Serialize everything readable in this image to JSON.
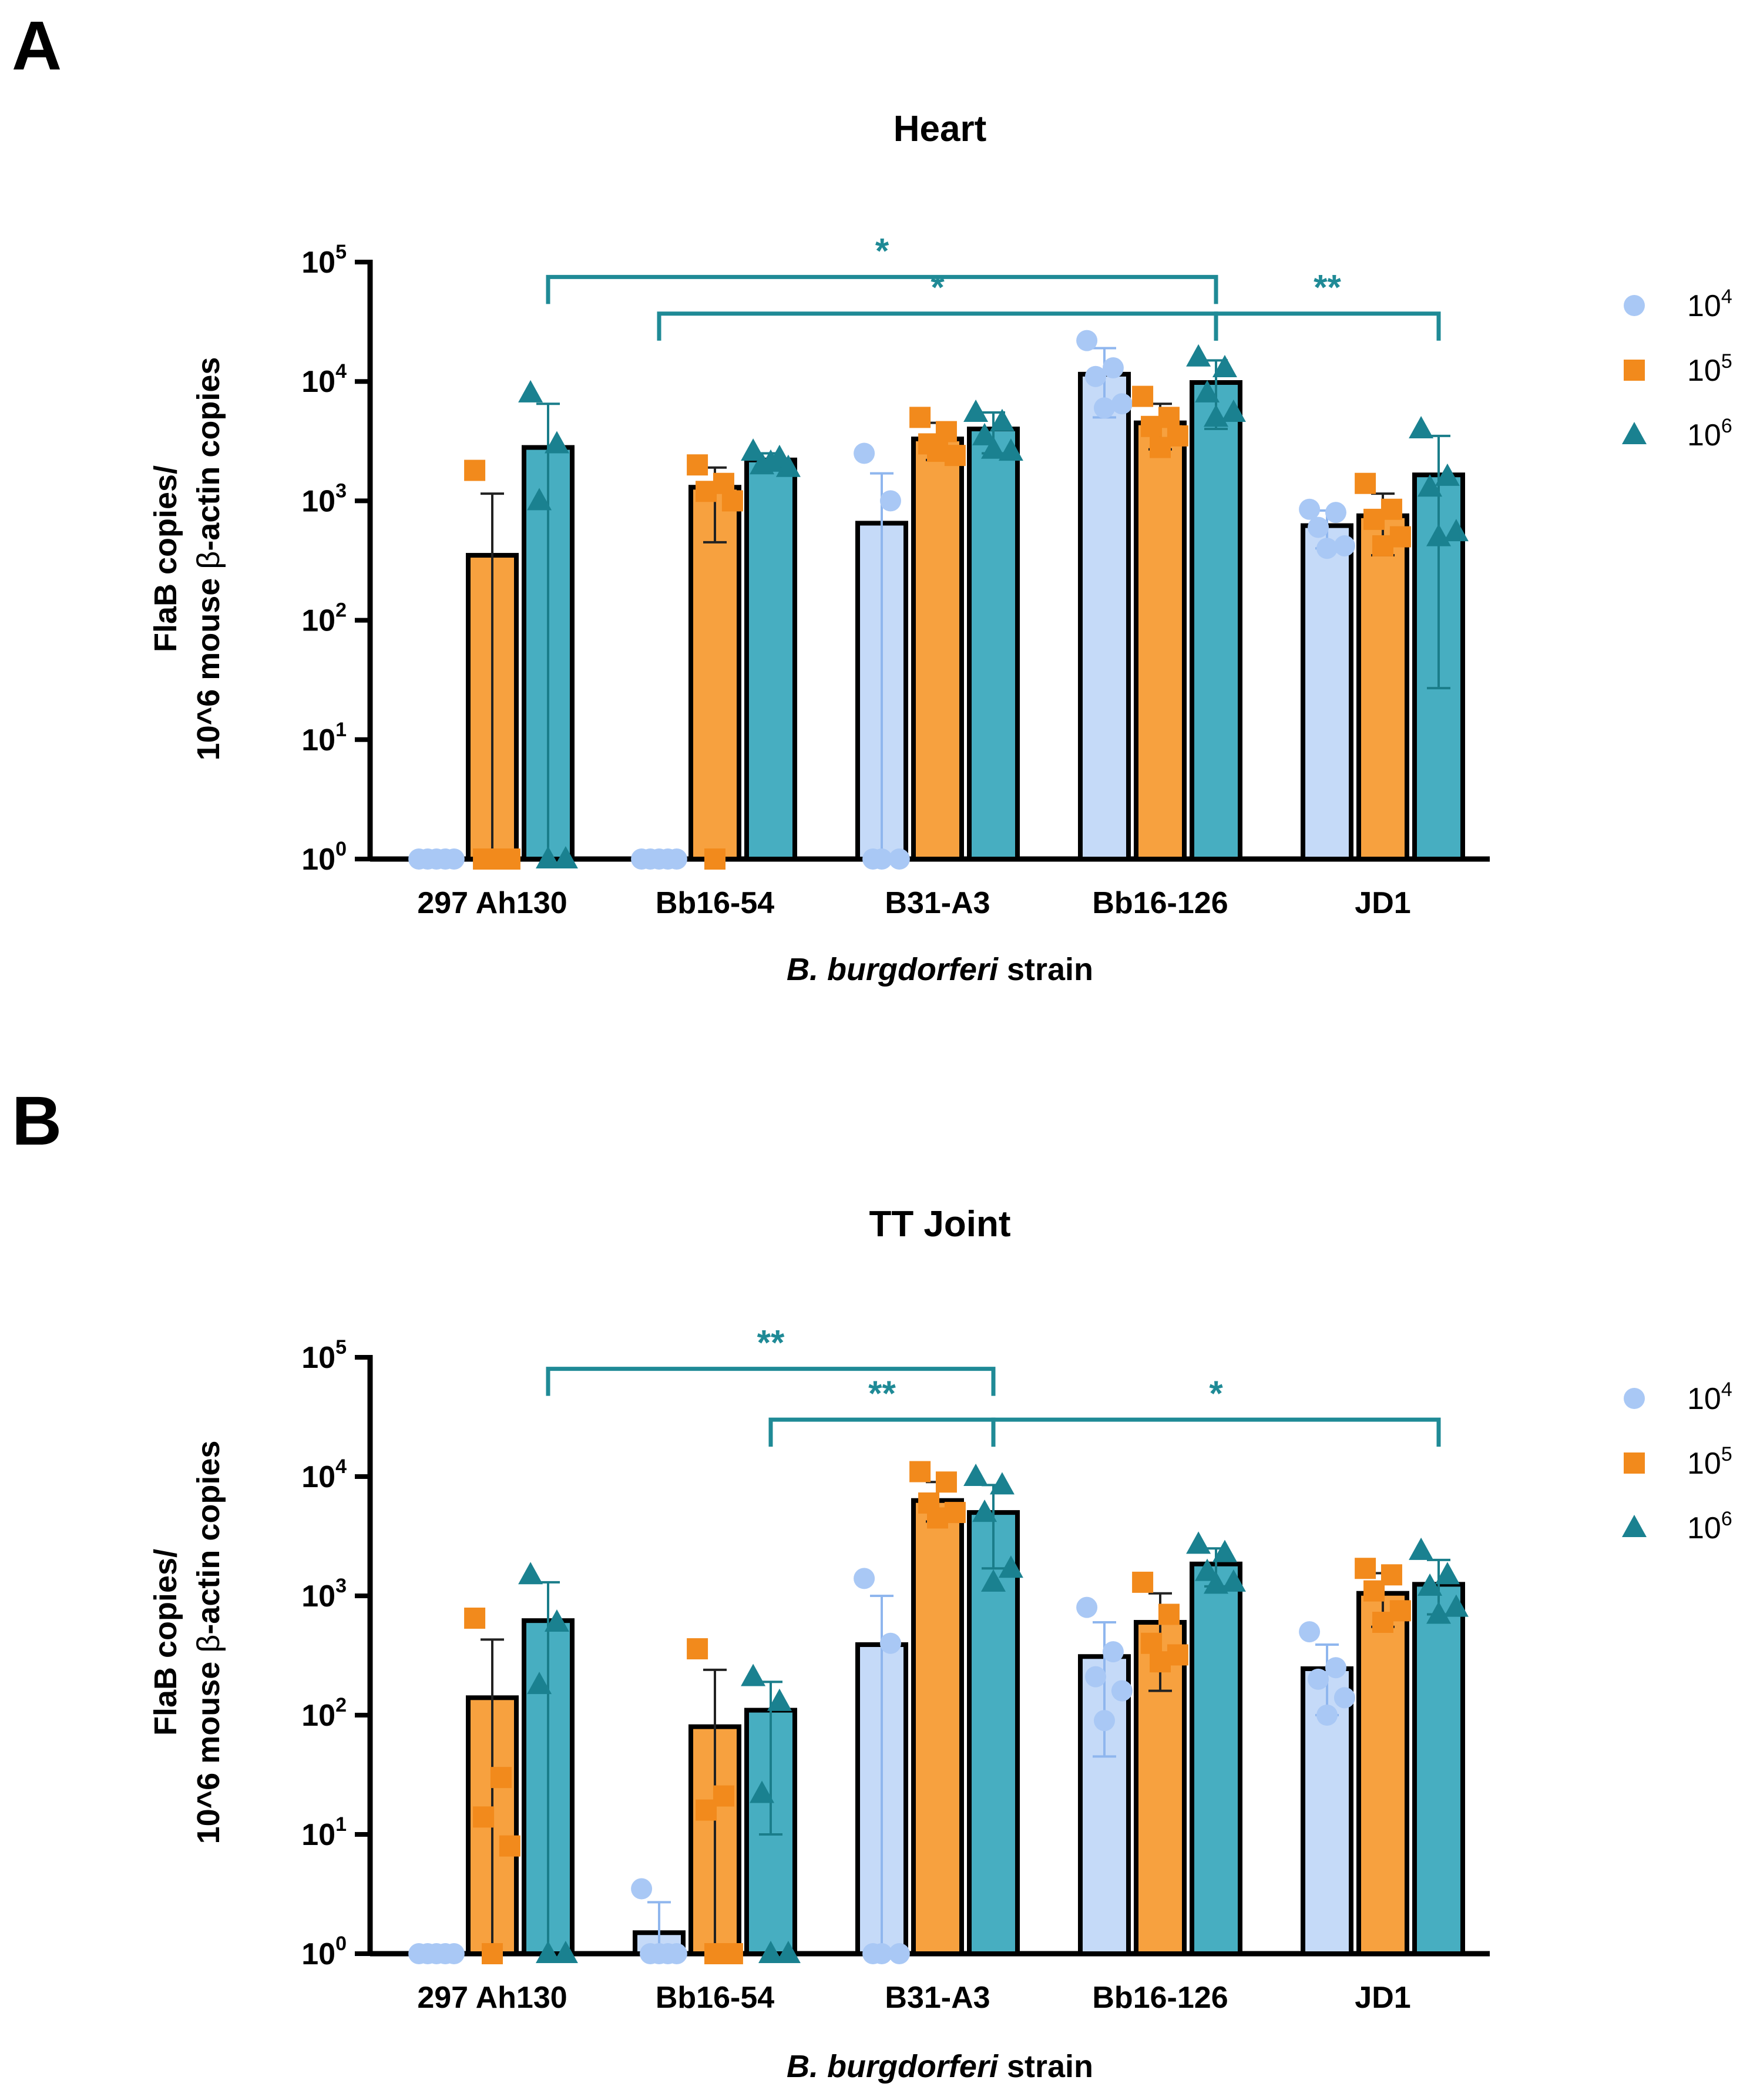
{
  "figure": {
    "series": [
      {
        "key": "1e4",
        "base": "10",
        "exp": "4",
        "fill": "#c5daf8",
        "marker_color": "#a9c8f5",
        "marker": "circle"
      },
      {
        "key": "1e5",
        "base": "10",
        "exp": "5",
        "fill": "#f7a13f",
        "marker_color": "#f28a1c",
        "marker": "square"
      },
      {
        "key": "1e6",
        "base": "10",
        "exp": "6",
        "fill": "#47aec1",
        "marker_color": "#1a8190",
        "marker": "triangle"
      }
    ],
    "bracket_color": "#1f8a96"
  },
  "chart_data": [
    {
      "type": "bar",
      "panel": "A",
      "title": "Heart",
      "ylabel_line1": "FlaB copies/",
      "ylabel_line2_pre": "10^6 mouse ",
      "ylabel_line2_greek": "β",
      "ylabel_line2_post": "-actin copies",
      "xlabel_italic": "B. burgdorferi",
      "xlabel_rest": " strain",
      "yscale": "log10",
      "ylim": [
        1,
        100000
      ],
      "yticks": [
        {
          "base": "10",
          "exp": "0"
        },
        {
          "base": "10",
          "exp": "1"
        },
        {
          "base": "10",
          "exp": "2"
        },
        {
          "base": "10",
          "exp": "3"
        },
        {
          "base": "10",
          "exp": "4"
        },
        {
          "base": "10",
          "exp": "5"
        }
      ],
      "categories": [
        "297 Ah130",
        "Bb16-54",
        "B31-A3",
        "Bb16-126",
        "JD1"
      ],
      "groups": [
        {
          "bars": [
            {
              "value": 1,
              "err": null,
              "points": [
                1,
                1,
                1,
                1,
                1
              ]
            },
            {
              "value": 350,
              "err": [
                1,
                1150
              ],
              "points": [
                1800,
                1,
                1,
                1,
                1
              ]
            },
            {
              "value": 2800,
              "err": [
                1,
                6500
              ],
              "points": [
                8000,
                3000,
                1000,
                1,
                1
              ]
            }
          ]
        },
        {
          "bars": [
            {
              "value": 1,
              "err": null,
              "points": [
                1,
                1,
                1,
                1,
                1
              ]
            },
            {
              "value": 1300,
              "err": [
                450,
                1900
              ],
              "points": [
                2000,
                1400,
                1200,
                1000,
                1
              ]
            },
            {
              "value": 2200,
              "err": [
                1900,
                2500
              ],
              "points": [
                2600,
                2300,
                2000,
                1900,
                2100
              ]
            }
          ]
        },
        {
          "bars": [
            {
              "value": 650,
              "err": [
                1,
                1700
              ],
              "points": [
                2500,
                1000,
                1,
                1,
                1
              ]
            },
            {
              "value": 3300,
              "err": [
                2200,
                4500
              ],
              "points": [
                5000,
                3800,
                3000,
                2400,
                2600
              ]
            },
            {
              "value": 4000,
              "err": [
                2500,
                5500
              ],
              "points": [
                5500,
                4600,
                3500,
                2600,
                2700
              ]
            }
          ]
        },
        {
          "bars": [
            {
              "value": 11500,
              "err": [
                5000,
                19000
              ],
              "points": [
                22000,
                13000,
                11000,
                6500,
                6000
              ]
            },
            {
              "value": 4500,
              "err": [
                2700,
                6500
              ],
              "points": [
                7500,
                5000,
                4200,
                3500,
                2800
              ]
            },
            {
              "value": 9800,
              "err": [
                4000,
                15000
              ],
              "points": [
                16000,
                13000,
                8000,
                5500,
                5000
              ]
            }
          ]
        },
        {
          "bars": [
            {
              "value": 620,
              "err": [
                400,
                830
              ],
              "points": [
                850,
                800,
                600,
                420,
                400
              ]
            },
            {
              "value": 750,
              "err": [
                350,
                1150
              ],
              "points": [
                1400,
                850,
                700,
                500,
                420
              ]
            },
            {
              "value": 1650,
              "err": [
                27,
                3500
              ],
              "points": [
                4000,
                1600,
                1300,
                550,
                500
              ]
            }
          ]
        }
      ],
      "brackets": [
        {
          "from": [
            0,
            2
          ],
          "to": [
            3,
            2
          ],
          "label": "*",
          "value": 75000
        },
        {
          "from": [
            1,
            0
          ],
          "to": [
            3,
            2
          ],
          "label": "*",
          "value": 37000
        },
        {
          "from": [
            3,
            2
          ],
          "to": [
            4,
            2
          ],
          "label": "**",
          "value": 37000
        }
      ]
    },
    {
      "type": "bar",
      "panel": "B",
      "title": "TT Joint",
      "ylabel_line1": "FlaB copies/",
      "ylabel_line2_pre": "10^6 mouse ",
      "ylabel_line2_greek": "β",
      "ylabel_line2_post": "-actin copies",
      "xlabel_italic": "B. burgdorferi",
      "xlabel_rest": " strain",
      "yscale": "log10",
      "ylim": [
        1,
        100000
      ],
      "yticks": [
        {
          "base": "10",
          "exp": "0"
        },
        {
          "base": "10",
          "exp": "1"
        },
        {
          "base": "10",
          "exp": "2"
        },
        {
          "base": "10",
          "exp": "3"
        },
        {
          "base": "10",
          "exp": "4"
        },
        {
          "base": "10",
          "exp": "5"
        }
      ],
      "categories": [
        "297 Ah130",
        "Bb16-54",
        "B31-A3",
        "Bb16-126",
        "JD1"
      ],
      "groups": [
        {
          "bars": [
            {
              "value": 1,
              "err": null,
              "points": [
                1,
                1,
                1,
                1,
                1
              ]
            },
            {
              "value": 140,
              "err": [
                1,
                430
              ],
              "points": [
                650,
                30,
                14,
                8,
                1
              ]
            },
            {
              "value": 620,
              "err": [
                1,
                1300
              ],
              "points": [
                1500,
                600,
                180,
                1,
                1
              ]
            }
          ]
        },
        {
          "bars": [
            {
              "value": 1.5,
              "err": [
                1,
                2.7
              ],
              "points": [
                3.5,
                1,
                1,
                1,
                1
              ]
            },
            {
              "value": 80,
              "err": [
                1,
                240
              ],
              "points": [
                360,
                21,
                16,
                1,
                1
              ]
            },
            {
              "value": 110,
              "err": [
                10,
                190
              ],
              "points": [
                210,
                130,
                22,
                1,
                1
              ]
            }
          ]
        },
        {
          "bars": [
            {
              "value": 390,
              "err": [
                1,
                1000
              ],
              "points": [
                1400,
                400,
                1,
                1,
                1
              ]
            },
            {
              "value": 6300,
              "err": [
                4200,
                9000
              ],
              "points": [
                11000,
                9000,
                6000,
                5000,
                4500
              ]
            },
            {
              "value": 5000,
              "err": [
                1700,
                8500
              ],
              "points": [
                10000,
                8500,
                5000,
                1700,
                1300
              ]
            }
          ]
        },
        {
          "bars": [
            {
              "value": 310,
              "err": [
                45,
                600
              ],
              "points": [
                800,
                340,
                210,
                160,
                90
              ]
            },
            {
              "value": 600,
              "err": [
                160,
                1050
              ],
              "points": [
                1300,
                700,
                400,
                320,
                280
              ]
            },
            {
              "value": 1850,
              "err": [
                1200,
                2500
              ],
              "points": [
                2700,
                2300,
                1600,
                1300,
                1250
              ]
            }
          ]
        },
        {
          "bars": [
            {
              "value": 245,
              "err": [
                100,
                390
              ],
              "points": [
                500,
                250,
                200,
                140,
                100
              ]
            },
            {
              "value": 1050,
              "err": [
                550,
                1550
              ],
              "points": [
                1700,
                1500,
                1100,
                750,
                600
              ]
            },
            {
              "value": 1250,
              "err": [
                700,
                2000
              ],
              "points": [
                2400,
                1500,
                1200,
                800,
                700
              ]
            }
          ]
        }
      ],
      "brackets": [
        {
          "from": [
            0,
            2
          ],
          "to": [
            2,
            2
          ],
          "label": "**",
          "value": 80000
        },
        {
          "from": [
            1,
            2
          ],
          "to": [
            2,
            2
          ],
          "label": "**",
          "value": 30000
        },
        {
          "from": [
            2,
            2
          ],
          "to": [
            4,
            2
          ],
          "label": "*",
          "value": 30000
        }
      ]
    }
  ]
}
